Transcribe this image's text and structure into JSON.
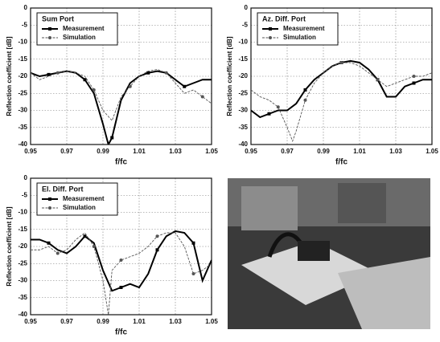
{
  "chart_data": [
    {
      "type": "line",
      "title": "Sum Port",
      "xlabel": "f/fc",
      "ylabel": "Reflection coefficient [dB]",
      "xlim": [
        0.95,
        1.05
      ],
      "xticks": [
        0.95,
        0.97,
        0.99,
        1.01,
        1.03,
        1.05
      ],
      "ylim": [
        -40,
        0
      ],
      "yticks": [
        0,
        -5,
        -10,
        -15,
        -20,
        -25,
        -30,
        -35,
        -40
      ],
      "grid": true,
      "series": [
        {
          "name": "Measurement",
          "color": "#000000",
          "line": "solid",
          "marker": "square",
          "x": [
            0.95,
            0.955,
            0.96,
            0.965,
            0.97,
            0.975,
            0.98,
            0.985,
            0.99,
            0.993,
            0.995,
            1.0,
            1.005,
            1.01,
            1.015,
            1.02,
            1.025,
            1.03,
            1.035,
            1.04,
            1.045,
            1.05
          ],
          "values": [
            -19,
            -20,
            -19.5,
            -19,
            -18.5,
            -19,
            -21,
            -25,
            -34,
            -40,
            -38,
            -27,
            -22,
            -20,
            -19,
            -18.5,
            -19,
            -21,
            -23,
            -22,
            -21,
            -21
          ]
        },
        {
          "name": "Simulation",
          "color": "#555555",
          "line": "dashed",
          "marker": "circle",
          "x": [
            0.95,
            0.955,
            0.96,
            0.965,
            0.97,
            0.975,
            0.98,
            0.985,
            0.99,
            0.995,
            1.0,
            1.005,
            1.01,
            1.015,
            1.02,
            1.025,
            1.03,
            1.035,
            1.04,
            1.045,
            1.05
          ],
          "values": [
            -19,
            -21,
            -20,
            -19,
            -18.5,
            -19,
            -20,
            -24,
            -30,
            -33,
            -26,
            -23,
            -20,
            -18.5,
            -18,
            -19,
            -22,
            -25,
            -24,
            -26,
            -28
          ]
        }
      ]
    },
    {
      "type": "line",
      "title": "Az. Diff. Port",
      "xlabel": "f/fc",
      "ylabel": "Reflection coefficient [dB]",
      "xlim": [
        0.95,
        1.05
      ],
      "xticks": [
        0.95,
        0.97,
        0.99,
        1.01,
        1.03,
        1.05
      ],
      "ylim": [
        -40,
        0
      ],
      "yticks": [
        0,
        -5,
        -10,
        -15,
        -20,
        -25,
        -30,
        -35,
        -40
      ],
      "grid": true,
      "series": [
        {
          "name": "Measurement",
          "color": "#000000",
          "line": "solid",
          "marker": "square",
          "x": [
            0.95,
            0.955,
            0.96,
            0.965,
            0.97,
            0.975,
            0.98,
            0.985,
            0.99,
            0.995,
            1.0,
            1.005,
            1.01,
            1.015,
            1.02,
            1.025,
            1.03,
            1.035,
            1.04,
            1.045,
            1.05
          ],
          "values": [
            -30,
            -32,
            -31,
            -30,
            -30,
            -28,
            -24,
            -21,
            -19,
            -17,
            -16,
            -15.5,
            -16,
            -18,
            -21,
            -26,
            -26,
            -23,
            -22,
            -21,
            -21
          ]
        },
        {
          "name": "Simulation",
          "color": "#555555",
          "line": "dashed",
          "marker": "circle",
          "x": [
            0.95,
            0.955,
            0.96,
            0.965,
            0.97,
            0.973,
            0.975,
            0.98,
            0.985,
            0.99,
            0.995,
            1.0,
            1.005,
            1.01,
            1.015,
            1.02,
            1.025,
            1.03,
            1.035,
            1.04,
            1.045,
            1.05
          ],
          "values": [
            -24,
            -26,
            -27,
            -29,
            -35,
            -39,
            -36,
            -27,
            -22,
            -19,
            -17,
            -16,
            -16,
            -17,
            -19,
            -21,
            -23,
            -22,
            -21,
            -20,
            -20,
            -19
          ]
        }
      ]
    },
    {
      "type": "line",
      "title": "El. Diff. Port",
      "xlabel": "f/fc",
      "ylabel": "Reflection coefficient [dB]",
      "xlim": [
        0.95,
        1.05
      ],
      "xticks": [
        0.95,
        0.97,
        0.99,
        1.01,
        1.03,
        1.05
      ],
      "ylim": [
        -40,
        0
      ],
      "yticks": [
        0,
        -5,
        -10,
        -15,
        -20,
        -25,
        -30,
        -35,
        -40
      ],
      "grid": true,
      "series": [
        {
          "name": "Measurement",
          "color": "#000000",
          "line": "solid",
          "marker": "square",
          "x": [
            0.95,
            0.955,
            0.96,
            0.965,
            0.97,
            0.975,
            0.98,
            0.985,
            0.99,
            0.995,
            1.0,
            1.005,
            1.01,
            1.015,
            1.02,
            1.025,
            1.03,
            1.035,
            1.04,
            1.045,
            1.05
          ],
          "values": [
            -18,
            -18,
            -19,
            -21,
            -22,
            -20,
            -17,
            -19,
            -27,
            -33,
            -32,
            -31,
            -32,
            -28,
            -21,
            -17,
            -15.5,
            -16,
            -19,
            -30,
            -24
          ]
        },
        {
          "name": "Simulation",
          "color": "#555555",
          "line": "dashed",
          "marker": "circle",
          "x": [
            0.95,
            0.955,
            0.96,
            0.965,
            0.97,
            0.975,
            0.98,
            0.985,
            0.99,
            0.993,
            0.995,
            1.0,
            1.005,
            1.01,
            1.015,
            1.02,
            1.025,
            1.03,
            1.035,
            1.04,
            1.045,
            1.05
          ],
          "values": [
            -21,
            -21,
            -20,
            -22,
            -21,
            -18,
            -16,
            -20,
            -30,
            -40,
            -27,
            -24,
            -23,
            -22,
            -20,
            -17,
            -16,
            -16,
            -20,
            -28,
            -27,
            -25
          ]
        }
      ]
    }
  ]
}
